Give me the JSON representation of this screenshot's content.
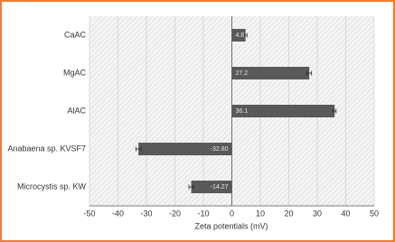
{
  "chart_data": {
    "type": "hbar",
    "categories": [
      "CaAC",
      "MgAC",
      "AlAC",
      "Anabaena sp. KVSF7",
      "Microcystis sp. KW"
    ],
    "values": [
      4.8,
      27.2,
      36.1,
      -32.8,
      -14.27
    ],
    "value_labels": [
      "4.8",
      "27.2",
      "36.1",
      "-32.80",
      "-14.27"
    ],
    "errors": [
      0.5,
      0.8,
      0.5,
      0.9,
      0.8
    ],
    "color": "#595959",
    "xlabel": "Zeta potentials (mV)",
    "xlim": [
      -50,
      50
    ],
    "xticks": [
      -50,
      -40,
      -30,
      -20,
      -10,
      0,
      10,
      20,
      30,
      40,
      50
    ],
    "grid": true
  }
}
